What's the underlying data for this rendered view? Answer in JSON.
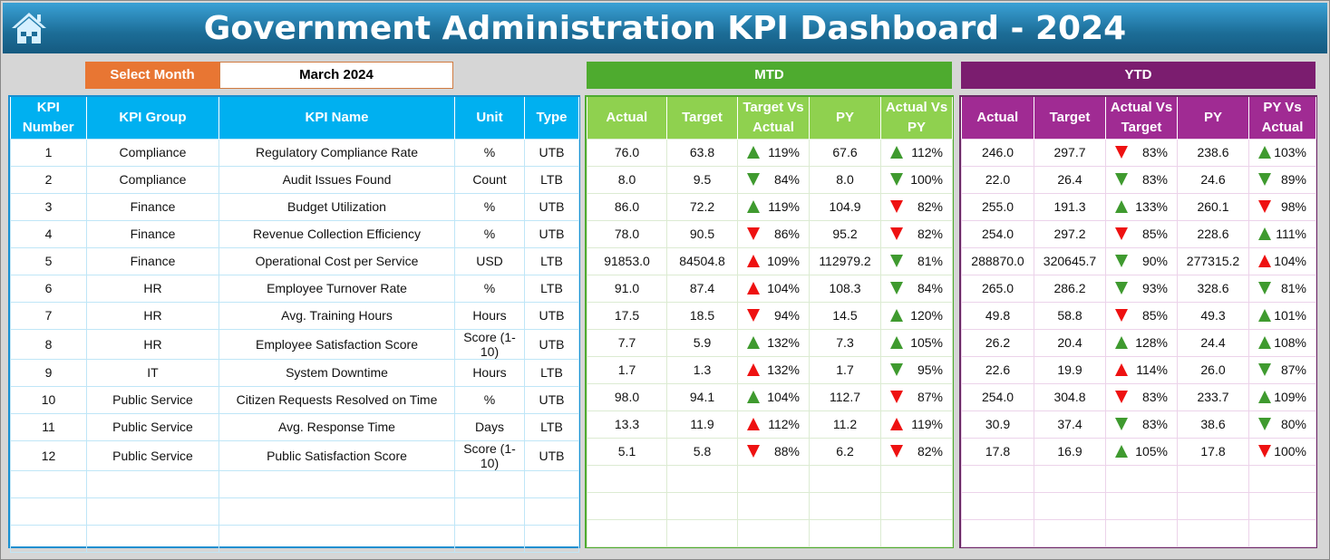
{
  "title": "Government Administration KPI Dashboard - 2024",
  "select_month_label": "Select Month",
  "selected_month": "March 2024",
  "mtd_label": "MTD",
  "ytd_label": "YTD",
  "colors": {
    "blue": "#00b0f0",
    "green": "#8bc34a",
    "purple": "#a02b93",
    "up_good": "#3f9a2f",
    "bad": "#ee1111"
  },
  "left_headers": [
    "KPI Number",
    "KPI Group",
    "KPI Name",
    "Unit",
    "Type"
  ],
  "mtd_headers": [
    "Actual",
    "Target",
    "Target Vs Actual",
    "PY",
    "Actual Vs PY"
  ],
  "ytd_headers": [
    "Actual",
    "Target",
    "Actual Vs Target",
    "PY",
    "PY Vs Actual"
  ],
  "rows": [
    {
      "num": "1",
      "group": "Compliance",
      "name": "Regulatory Compliance Rate",
      "unit": "%",
      "type": "UTB",
      "mtd": [
        "76.0",
        "63.8",
        [
          "up-green",
          "119%"
        ],
        "67.6",
        [
          "up-green",
          "112%"
        ]
      ],
      "ytd": [
        "246.0",
        "297.7",
        [
          "down-red",
          "83%"
        ],
        "238.6",
        [
          "up-green",
          "103%"
        ]
      ]
    },
    {
      "num": "2",
      "group": "Compliance",
      "name": "Audit Issues Found",
      "unit": "Count",
      "type": "LTB",
      "mtd": [
        "8.0",
        "9.5",
        [
          "down-green",
          "84%"
        ],
        "8.0",
        [
          "down-green",
          "100%"
        ]
      ],
      "ytd": [
        "22.0",
        "26.4",
        [
          "down-green",
          "83%"
        ],
        "24.6",
        [
          "down-green",
          "89%"
        ]
      ]
    },
    {
      "num": "3",
      "group": "Finance",
      "name": "Budget Utilization",
      "unit": "%",
      "type": "UTB",
      "mtd": [
        "86.0",
        "72.2",
        [
          "up-green",
          "119%"
        ],
        "104.9",
        [
          "down-red",
          "82%"
        ]
      ],
      "ytd": [
        "255.0",
        "191.3",
        [
          "up-green",
          "133%"
        ],
        "260.1",
        [
          "down-red",
          "98%"
        ]
      ]
    },
    {
      "num": "4",
      "group": "Finance",
      "name": "Revenue Collection Efficiency",
      "unit": "%",
      "type": "UTB",
      "mtd": [
        "78.0",
        "90.5",
        [
          "down-red",
          "86%"
        ],
        "95.2",
        [
          "down-red",
          "82%"
        ]
      ],
      "ytd": [
        "254.0",
        "297.2",
        [
          "down-red",
          "85%"
        ],
        "228.6",
        [
          "up-green",
          "111%"
        ]
      ]
    },
    {
      "num": "5",
      "group": "Finance",
      "name": "Operational Cost per Service",
      "unit": "USD",
      "type": "LTB",
      "mtd": [
        "91853.0",
        "84504.8",
        [
          "up-red",
          "109%"
        ],
        "112979.2",
        [
          "down-green",
          "81%"
        ]
      ],
      "ytd": [
        "288870.0",
        "320645.7",
        [
          "down-green",
          "90%"
        ],
        "277315.2",
        [
          "up-red",
          "104%"
        ]
      ]
    },
    {
      "num": "6",
      "group": "HR",
      "name": "Employee Turnover Rate",
      "unit": "%",
      "type": "LTB",
      "mtd": [
        "91.0",
        "87.4",
        [
          "up-red",
          "104%"
        ],
        "108.3",
        [
          "down-green",
          "84%"
        ]
      ],
      "ytd": [
        "265.0",
        "286.2",
        [
          "down-green",
          "93%"
        ],
        "328.6",
        [
          "down-green",
          "81%"
        ]
      ]
    },
    {
      "num": "7",
      "group": "HR",
      "name": "Avg. Training Hours",
      "unit": "Hours",
      "type": "UTB",
      "mtd": [
        "17.5",
        "18.5",
        [
          "down-red",
          "94%"
        ],
        "14.5",
        [
          "up-green",
          "120%"
        ]
      ],
      "ytd": [
        "49.8",
        "58.8",
        [
          "down-red",
          "85%"
        ],
        "49.3",
        [
          "up-green",
          "101%"
        ]
      ]
    },
    {
      "num": "8",
      "group": "HR",
      "name": "Employee Satisfaction Score",
      "unit": "Score (1-10)",
      "type": "UTB",
      "mtd": [
        "7.7",
        "5.9",
        [
          "up-green",
          "132%"
        ],
        "7.3",
        [
          "up-green",
          "105%"
        ]
      ],
      "ytd": [
        "26.2",
        "20.4",
        [
          "up-green",
          "128%"
        ],
        "24.4",
        [
          "up-green",
          "108%"
        ]
      ]
    },
    {
      "num": "9",
      "group": "IT",
      "name": "System Downtime",
      "unit": "Hours",
      "type": "LTB",
      "mtd": [
        "1.7",
        "1.3",
        [
          "up-red",
          "132%"
        ],
        "1.7",
        [
          "down-green",
          "95%"
        ]
      ],
      "ytd": [
        "22.6",
        "19.9",
        [
          "up-red",
          "114%"
        ],
        "26.0",
        [
          "down-green",
          "87%"
        ]
      ]
    },
    {
      "num": "10",
      "group": "Public Service",
      "name": "Citizen Requests Resolved on Time",
      "unit": "%",
      "type": "UTB",
      "mtd": [
        "98.0",
        "94.1",
        [
          "up-green",
          "104%"
        ],
        "112.7",
        [
          "down-red",
          "87%"
        ]
      ],
      "ytd": [
        "254.0",
        "304.8",
        [
          "down-red",
          "83%"
        ],
        "233.7",
        [
          "up-green",
          "109%"
        ]
      ]
    },
    {
      "num": "11",
      "group": "Public Service",
      "name": "Avg. Response Time",
      "unit": "Days",
      "type": "LTB",
      "mtd": [
        "13.3",
        "11.9",
        [
          "up-red",
          "112%"
        ],
        "11.2",
        [
          "up-red",
          "119%"
        ]
      ],
      "ytd": [
        "30.9",
        "37.4",
        [
          "down-green",
          "83%"
        ],
        "38.6",
        [
          "down-green",
          "80%"
        ]
      ]
    },
    {
      "num": "12",
      "group": "Public Service",
      "name": "Public Satisfaction Score",
      "unit": "Score (1-10)",
      "type": "UTB",
      "mtd": [
        "5.1",
        "5.8",
        [
          "down-red",
          "88%"
        ],
        "6.2",
        [
          "down-red",
          "82%"
        ]
      ],
      "ytd": [
        "17.8",
        "16.9",
        [
          "up-green",
          "105%"
        ],
        "17.8",
        [
          "down-red",
          "100%"
        ]
      ]
    }
  ]
}
